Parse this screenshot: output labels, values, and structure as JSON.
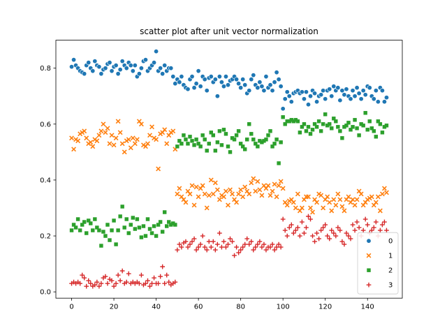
{
  "chart_data": {
    "type": "scatter",
    "title": "scatter plot after unit vector normalization",
    "xlabel": "",
    "ylabel": "",
    "xlim": [
      -7.45,
      156.45
    ],
    "ylim": [
      -0.0225,
      0.9
    ],
    "xticks": [
      0,
      20,
      40,
      60,
      80,
      100,
      120,
      140
    ],
    "yticks": [
      0.0,
      0.2,
      0.4,
      0.6,
      0.8
    ],
    "xtick_labels": [
      "0",
      "20",
      "40",
      "60",
      "80",
      "100",
      "120",
      "140"
    ],
    "ytick_labels": [
      "0.0",
      "0.2",
      "0.4",
      "0.6",
      "0.8"
    ],
    "grid": false,
    "legend_position": "bottom-right",
    "series": [
      {
        "name": "0",
        "color": "#1f77b4",
        "marker": "circle",
        "x": [
          0,
          1,
          2,
          3,
          4,
          5,
          6,
          7,
          8,
          9,
          10,
          11,
          12,
          13,
          14,
          15,
          16,
          17,
          18,
          19,
          20,
          21,
          22,
          23,
          24,
          25,
          26,
          27,
          28,
          29,
          30,
          31,
          32,
          33,
          34,
          35,
          36,
          37,
          38,
          39,
          40,
          41,
          42,
          43,
          44,
          45,
          46,
          47,
          48,
          49,
          50,
          51,
          52,
          53,
          54,
          55,
          56,
          57,
          58,
          59,
          60,
          61,
          62,
          63,
          64,
          65,
          66,
          67,
          68,
          69,
          70,
          71,
          72,
          73,
          74,
          75,
          76,
          77,
          78,
          79,
          80,
          81,
          82,
          83,
          84,
          85,
          86,
          87,
          88,
          89,
          90,
          91,
          92,
          93,
          94,
          95,
          96,
          97,
          98,
          99,
          100,
          101,
          102,
          103,
          104,
          105,
          106,
          107,
          108,
          109,
          110,
          111,
          112,
          113,
          114,
          115,
          116,
          117,
          118,
          119,
          120,
          121,
          122,
          123,
          124,
          125,
          126,
          127,
          128,
          129,
          130,
          131,
          132,
          133,
          134,
          135,
          136,
          137,
          138,
          139,
          140,
          141,
          142,
          143,
          144,
          145,
          146,
          147,
          148,
          149
        ],
        "y": [
          0.805,
          0.83,
          0.81,
          0.8,
          0.79,
          0.785,
          0.78,
          0.81,
          0.82,
          0.8,
          0.79,
          0.825,
          0.81,
          0.805,
          0.78,
          0.795,
          0.8,
          0.815,
          0.82,
          0.79,
          0.805,
          0.81,
          0.78,
          0.795,
          0.825,
          0.81,
          0.8,
          0.82,
          0.81,
          0.79,
          0.81,
          0.77,
          0.78,
          0.8,
          0.825,
          0.83,
          0.79,
          0.8,
          0.81,
          0.82,
          0.86,
          0.79,
          0.8,
          0.78,
          0.81,
          0.79,
          0.8,
          0.8,
          0.77,
          0.745,
          0.76,
          0.75,
          0.77,
          0.74,
          0.73,
          0.725,
          0.76,
          0.77,
          0.73,
          0.745,
          0.79,
          0.735,
          0.77,
          0.76,
          0.72,
          0.765,
          0.77,
          0.75,
          0.76,
          0.7,
          0.77,
          0.75,
          0.735,
          0.77,
          0.74,
          0.755,
          0.76,
          0.77,
          0.76,
          0.745,
          0.73,
          0.76,
          0.74,
          0.71,
          0.72,
          0.76,
          0.775,
          0.74,
          0.73,
          0.75,
          0.735,
          0.72,
          0.77,
          0.73,
          0.74,
          0.72,
          0.75,
          0.785,
          0.76,
          0.735,
          0.655,
          0.69,
          0.715,
          0.7,
          0.68,
          0.71,
          0.715,
          0.72,
          0.71,
          0.715,
          0.69,
          0.715,
          0.67,
          0.7,
          0.72,
          0.71,
          0.68,
          0.7,
          0.705,
          0.72,
          0.69,
          0.72,
          0.725,
          0.7,
          0.735,
          0.72,
          0.73,
          0.685,
          0.72,
          0.705,
          0.725,
          0.7,
          0.69,
          0.72,
          0.7,
          0.73,
          0.71,
          0.69,
          0.72,
          0.705,
          0.735,
          0.73,
          0.7,
          0.69,
          0.72,
          0.68,
          0.73,
          0.72,
          0.68,
          0.695
        ]
      },
      {
        "name": "1",
        "color": "#ff7f0e",
        "marker": "x",
        "x": [
          0,
          1,
          2,
          3,
          4,
          5,
          6,
          7,
          8,
          9,
          10,
          11,
          12,
          13,
          14,
          15,
          16,
          17,
          18,
          19,
          20,
          21,
          22,
          23,
          24,
          25,
          26,
          27,
          28,
          29,
          30,
          31,
          32,
          33,
          34,
          35,
          36,
          37,
          38,
          39,
          40,
          41,
          42,
          43,
          44,
          45,
          46,
          47,
          48,
          49,
          50,
          51,
          52,
          53,
          54,
          55,
          56,
          57,
          58,
          59,
          60,
          61,
          62,
          63,
          64,
          65,
          66,
          67,
          68,
          69,
          70,
          71,
          72,
          73,
          74,
          75,
          76,
          77,
          78,
          79,
          80,
          81,
          82,
          83,
          84,
          85,
          86,
          87,
          88,
          89,
          90,
          91,
          92,
          93,
          94,
          95,
          96,
          97,
          98,
          99,
          100,
          101,
          102,
          103,
          104,
          105,
          106,
          107,
          108,
          109,
          110,
          111,
          112,
          113,
          114,
          115,
          116,
          117,
          118,
          119,
          120,
          121,
          122,
          123,
          124,
          125,
          126,
          127,
          128,
          129,
          130,
          131,
          132,
          133,
          134,
          135,
          136,
          137,
          138,
          139,
          140,
          141,
          142,
          143,
          144,
          145,
          146,
          147,
          148,
          149
        ],
        "y": [
          0.55,
          0.51,
          0.545,
          0.54,
          0.565,
          0.57,
          0.575,
          0.55,
          0.53,
          0.535,
          0.52,
          0.545,
          0.54,
          0.56,
          0.575,
          0.6,
          0.57,
          0.585,
          0.53,
          0.56,
          0.525,
          0.55,
          0.61,
          0.57,
          0.53,
          0.5,
          0.54,
          0.545,
          0.515,
          0.55,
          0.53,
          0.545,
          0.61,
          0.6,
          0.525,
          0.52,
          0.53,
          0.56,
          0.59,
          0.55,
          0.545,
          0.44,
          0.565,
          0.57,
          0.58,
          0.53,
          0.56,
          0.57,
          0.575,
          0.51,
          0.35,
          0.37,
          0.34,
          0.33,
          0.32,
          0.36,
          0.35,
          0.38,
          0.31,
          0.375,
          0.34,
          0.37,
          0.38,
          0.35,
          0.3,
          0.345,
          0.4,
          0.35,
          0.39,
          0.365,
          0.33,
          0.345,
          0.34,
          0.36,
          0.31,
          0.365,
          0.35,
          0.33,
          0.32,
          0.35,
          0.365,
          0.34,
          0.375,
          0.36,
          0.35,
          0.39,
          0.405,
          0.36,
          0.395,
          0.365,
          0.345,
          0.38,
          0.37,
          0.38,
          0.345,
          0.36,
          0.385,
          0.34,
          0.38,
          0.395,
          0.37,
          0.32,
          0.31,
          0.325,
          0.33,
          0.32,
          0.3,
          0.35,
          0.29,
          0.3,
          0.33,
          0.34,
          0.34,
          0.3,
          0.285,
          0.33,
          0.32,
          0.35,
          0.345,
          0.3,
          0.33,
          0.34,
          0.32,
          0.29,
          0.33,
          0.31,
          0.35,
          0.33,
          0.305,
          0.29,
          0.33,
          0.34,
          0.32,
          0.33,
          0.31,
          0.33,
          0.36,
          0.35,
          0.31,
          0.32,
          0.33,
          0.335,
          0.34,
          0.31,
          0.32,
          0.34,
          0.29,
          0.35,
          0.37,
          0.355
        ]
      },
      {
        "name": "2",
        "color": "#2ca02c",
        "marker": "square",
        "x": [
          0,
          1,
          2,
          3,
          4,
          5,
          6,
          7,
          8,
          9,
          10,
          11,
          12,
          13,
          14,
          15,
          16,
          17,
          18,
          19,
          20,
          21,
          22,
          23,
          24,
          25,
          26,
          27,
          28,
          29,
          30,
          31,
          32,
          33,
          34,
          35,
          36,
          37,
          38,
          39,
          40,
          41,
          42,
          43,
          44,
          45,
          46,
          47,
          48,
          49,
          50,
          51,
          52,
          53,
          54,
          55,
          56,
          57,
          58,
          59,
          60,
          61,
          62,
          63,
          64,
          65,
          66,
          67,
          68,
          69,
          70,
          71,
          72,
          73,
          74,
          75,
          76,
          77,
          78,
          79,
          80,
          81,
          82,
          83,
          84,
          85,
          86,
          87,
          88,
          89,
          90,
          91,
          92,
          93,
          94,
          95,
          96,
          97,
          98,
          99,
          100,
          101,
          102,
          103,
          104,
          105,
          106,
          107,
          108,
          109,
          110,
          111,
          112,
          113,
          114,
          115,
          116,
          117,
          118,
          119,
          120,
          121,
          122,
          123,
          124,
          125,
          126,
          127,
          128,
          129,
          130,
          131,
          132,
          133,
          134,
          135,
          136,
          137,
          138,
          139,
          140,
          141,
          142,
          143,
          144,
          145,
          146,
          147,
          148,
          149
        ],
        "y": [
          0.22,
          0.24,
          0.23,
          0.26,
          0.22,
          0.24,
          0.25,
          0.21,
          0.255,
          0.245,
          0.22,
          0.26,
          0.23,
          0.22,
          0.165,
          0.215,
          0.2,
          0.24,
          0.185,
          0.22,
          0.255,
          0.17,
          0.22,
          0.27,
          0.305,
          0.23,
          0.26,
          0.21,
          0.24,
          0.265,
          0.225,
          0.26,
          0.23,
          0.195,
          0.235,
          0.2,
          0.26,
          0.225,
          0.21,
          0.235,
          0.2,
          0.24,
          0.25,
          0.215,
          0.285,
          0.235,
          0.25,
          0.24,
          0.245,
          0.24,
          0.52,
          0.54,
          0.53,
          0.56,
          0.545,
          0.53,
          0.555,
          0.54,
          0.525,
          0.545,
          0.53,
          0.52,
          0.56,
          0.545,
          0.505,
          0.53,
          0.57,
          0.56,
          0.505,
          0.535,
          0.575,
          0.525,
          0.58,
          0.565,
          0.52,
          0.5,
          0.55,
          0.545,
          0.56,
          0.575,
          0.53,
          0.52,
          0.51,
          0.545,
          0.6,
          0.565,
          0.545,
          0.53,
          0.52,
          0.54,
          0.535,
          0.54,
          0.545,
          0.56,
          0.575,
          0.52,
          0.53,
          0.545,
          0.46,
          0.535,
          0.625,
          0.6,
          0.61,
          0.61,
          0.615,
          0.61,
          0.615,
          0.61,
          0.57,
          0.59,
          0.6,
          0.575,
          0.59,
          0.565,
          0.58,
          0.6,
          0.59,
          0.61,
          0.575,
          0.6,
          0.635,
          0.595,
          0.6,
          0.585,
          0.62,
          0.61,
          0.59,
          0.575,
          0.55,
          0.59,
          0.595,
          0.605,
          0.58,
          0.59,
          0.615,
          0.585,
          0.56,
          0.6,
          0.595,
          0.64,
          0.58,
          0.61,
          0.585,
          0.575,
          0.555,
          0.61,
          0.6,
          0.57,
          0.59,
          0.595
        ]
      },
      {
        "name": "3",
        "color": "#d62728",
        "marker": "plus",
        "x": [
          0,
          1,
          2,
          3,
          4,
          5,
          6,
          7,
          8,
          9,
          10,
          11,
          12,
          13,
          14,
          15,
          16,
          17,
          18,
          19,
          20,
          21,
          22,
          23,
          24,
          25,
          26,
          27,
          28,
          29,
          30,
          31,
          32,
          33,
          34,
          35,
          36,
          37,
          38,
          39,
          40,
          41,
          42,
          43,
          44,
          45,
          46,
          47,
          48,
          49,
          50,
          51,
          52,
          53,
          54,
          55,
          56,
          57,
          58,
          59,
          60,
          61,
          62,
          63,
          64,
          65,
          66,
          67,
          68,
          69,
          70,
          71,
          72,
          73,
          74,
          75,
          76,
          77,
          78,
          79,
          80,
          81,
          82,
          83,
          84,
          85,
          86,
          87,
          88,
          89,
          90,
          91,
          92,
          93,
          94,
          95,
          96,
          97,
          98,
          99,
          100,
          101,
          102,
          103,
          104,
          105,
          106,
          107,
          108,
          109,
          110,
          111,
          112,
          113,
          114,
          115,
          116,
          117,
          118,
          119,
          120,
          121,
          122,
          123,
          124,
          125,
          126,
          127,
          128,
          129,
          130,
          131,
          132,
          133,
          134,
          135,
          136,
          137,
          138,
          139,
          140,
          141,
          142,
          143,
          144,
          145,
          146,
          147,
          148,
          149
        ],
        "y": [
          0.03,
          0.035,
          0.03,
          0.035,
          0.03,
          0.06,
          0.05,
          0.02,
          0.04,
          0.03,
          0.02,
          0.025,
          0.035,
          0.02,
          0.03,
          0.05,
          0.055,
          0.03,
          0.045,
          0.04,
          0.02,
          0.03,
          0.06,
          0.04,
          0.075,
          0.03,
          0.035,
          0.065,
          0.03,
          0.035,
          0.03,
          0.035,
          0.03,
          0.06,
          0.025,
          0.03,
          0.04,
          0.02,
          0.03,
          0.05,
          0.03,
          0.03,
          0.055,
          0.09,
          0.03,
          0.06,
          0.035,
          0.025,
          0.03,
          0.035,
          0.15,
          0.17,
          0.16,
          0.175,
          0.18,
          0.16,
          0.17,
          0.18,
          0.19,
          0.15,
          0.16,
          0.17,
          0.2,
          0.16,
          0.15,
          0.18,
          0.16,
          0.18,
          0.15,
          0.17,
          0.21,
          0.16,
          0.18,
          0.16,
          0.17,
          0.19,
          0.18,
          0.13,
          0.16,
          0.14,
          0.15,
          0.16,
          0.17,
          0.19,
          0.17,
          0.18,
          0.15,
          0.16,
          0.17,
          0.18,
          0.16,
          0.17,
          0.15,
          0.16,
          0.16,
          0.17,
          0.15,
          0.16,
          0.17,
          0.16,
          0.26,
          0.22,
          0.2,
          0.23,
          0.24,
          0.21,
          0.22,
          0.23,
          0.2,
          0.25,
          0.21,
          0.23,
          0.27,
          0.26,
          0.2,
          0.18,
          0.21,
          0.19,
          0.22,
          0.23,
          0.24,
          0.2,
          0.19,
          0.22,
          0.21,
          0.2,
          0.23,
          0.22,
          0.18,
          0.17,
          0.21,
          0.2,
          0.19,
          0.24,
          0.22,
          0.25,
          0.23,
          0.2,
          0.22,
          0.26,
          0.24,
          0.21,
          0.22,
          0.23,
          0.25,
          0.2,
          0.22,
          0.24,
          0.25,
          0.22
        ]
      }
    ]
  }
}
